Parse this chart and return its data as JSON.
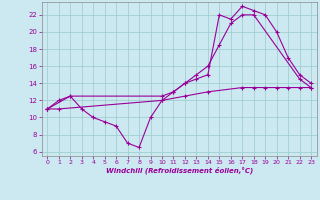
{
  "xlabel": "Windchill (Refroidissement éolien,°C)",
  "background_color": "#cce8f0",
  "grid_color": "#99cccc",
  "line_color": "#990099",
  "xlim": [
    -0.5,
    23.5
  ],
  "ylim": [
    5.5,
    23.5
  ],
  "yticks": [
    6,
    8,
    10,
    12,
    14,
    16,
    18,
    20,
    22
  ],
  "xticks": [
    0,
    1,
    2,
    3,
    4,
    5,
    6,
    7,
    8,
    9,
    10,
    11,
    12,
    13,
    14,
    15,
    16,
    17,
    18,
    19,
    20,
    21,
    22,
    23
  ],
  "series1_x": [
    0,
    1,
    2,
    3,
    4,
    5,
    6,
    7,
    8,
    9,
    10,
    11,
    12,
    13,
    14,
    15,
    16,
    17,
    18,
    19,
    20,
    21,
    22,
    23
  ],
  "series1_y": [
    11.0,
    12.0,
    12.5,
    11.0,
    10.0,
    9.5,
    9.0,
    7.0,
    6.5,
    10.0,
    12.0,
    13.0,
    14.0,
    14.5,
    15.0,
    22.0,
    21.5,
    23.0,
    22.5,
    22.0,
    20.0,
    17.0,
    15.0,
    14.0
  ],
  "series2_x": [
    0,
    2,
    10,
    11,
    12,
    13,
    14,
    15,
    16,
    17,
    18,
    22,
    23
  ],
  "series2_y": [
    11.0,
    12.5,
    12.5,
    13.0,
    14.0,
    15.0,
    16.0,
    18.5,
    21.0,
    22.0,
    22.0,
    14.5,
    13.5
  ],
  "series3_x": [
    0,
    1,
    10,
    12,
    14,
    17,
    18,
    19,
    20,
    21,
    22,
    23
  ],
  "series3_y": [
    11.0,
    11.0,
    12.0,
    12.5,
    13.0,
    13.5,
    13.5,
    13.5,
    13.5,
    13.5,
    13.5,
    13.5
  ]
}
